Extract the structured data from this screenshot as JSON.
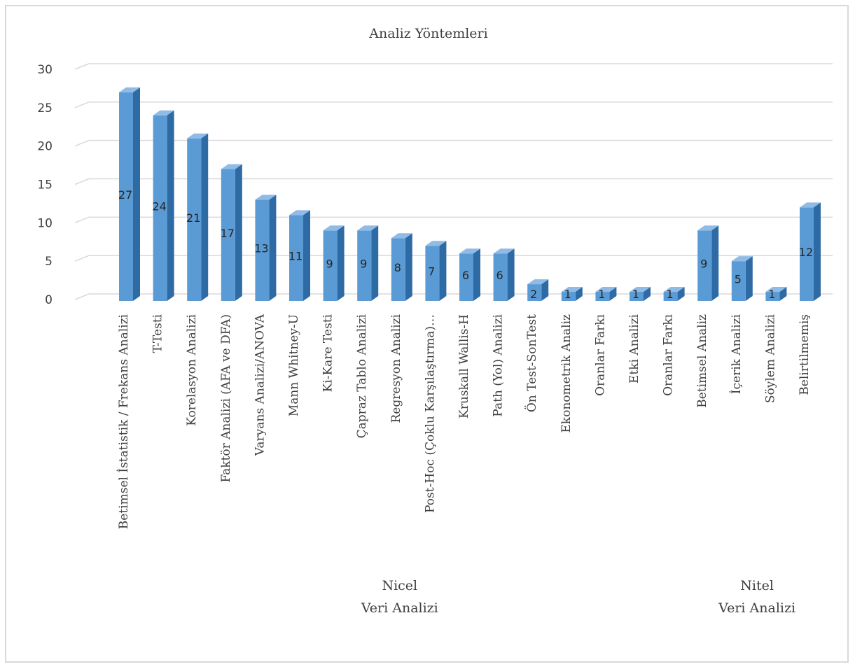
{
  "chart_data": {
    "type": "bar",
    "title": "Analiz Yöntemleri",
    "xlabel": "",
    "ylabel": "",
    "ylim": [
      0,
      30
    ],
    "yticks": [
      "0",
      "5",
      "10",
      "15",
      "20",
      "25",
      "30"
    ],
    "grid": true,
    "legend": "none",
    "categories": [
      "Betimsel İstatistik / Frekans Analizi",
      "T-Testi",
      "Korelasyon Analizi",
      "Faktör Analizi (AFA ve DFA)",
      "Varyans Analizi/ANOVA",
      "Mann Whitney-U",
      "Ki-Kare Testi",
      "Çapraz Tablo Analizi",
      "Regresyon Analizi",
      "Post-Hoc (Çoklu Karşılaştırma)…",
      "Kruskall Wallis-H",
      "Path (Yol) Analizi",
      "Ön Test-SonTest",
      "Ekonometrik Analiz",
      "Oranlar Farkı",
      "Etki Analizi",
      "Oranlar Farkı",
      "Betimsel Analiz",
      "İçerik Analizi",
      "Söylem Analizi",
      "Belirtilmemiş"
    ],
    "values": [
      27,
      24,
      21,
      17,
      13,
      11,
      9,
      9,
      8,
      7,
      6,
      6,
      2,
      1,
      1,
      1,
      1,
      9,
      5,
      1,
      12
    ],
    "data_labels": [
      "27",
      "24",
      "21",
      "17",
      "13",
      "11",
      "9",
      "9",
      "8",
      "7",
      "6",
      "6",
      "2",
      "1",
      "1",
      "1",
      "1",
      "9",
      "5",
      "1",
      "12"
    ],
    "groups": [
      {
        "label_line1": "Nicel",
        "label_line2": "Veri Analizi",
        "from": 0,
        "to": 16
      },
      {
        "label_line1": "Nitel",
        "label_line2": "Veri Analizi",
        "from": 17,
        "to": 20
      }
    ],
    "colors": {
      "bar_front": "#5b9bd5",
      "bar_side": "#2e6aa3",
      "bar_top": "#8fbbe6",
      "grid": "#d9d9d9"
    }
  }
}
